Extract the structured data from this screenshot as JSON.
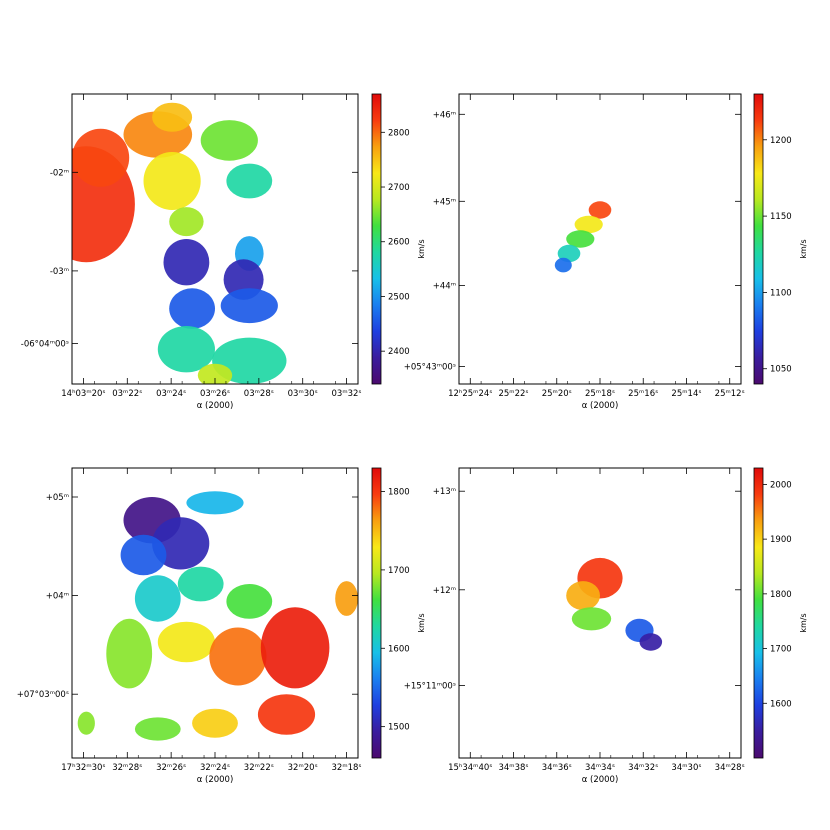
{
  "figure": {
    "colormap": [
      "#4b0a6e",
      "#3a1d9e",
      "#1e3fe0",
      "#1a7ff0",
      "#18c0e8",
      "#20d8a0",
      "#40e040",
      "#b8e820",
      "#f8e818",
      "#f8a010",
      "#f83c10",
      "#e00a0a"
    ]
  },
  "chart_data": [
    {
      "type": "heatmap",
      "panel": "top-left",
      "title": "",
      "xlabel": "α (2000)",
      "ylabel": "",
      "colorbar_label": "km/s",
      "colorbar_range": [
        2340,
        2870
      ],
      "colorbar_ticks": [
        "2400",
        "2500",
        "2600",
        "2700",
        "2800"
      ],
      "x_tick_labels": [
        "14ʰ03ᵐ20ˢ",
        "03ᵐ22ˢ",
        "03ᵐ24ˢ",
        "03ᵐ26ˢ",
        "03ᵐ28ˢ",
        "03ᵐ30ˢ",
        "03ᵐ32ˢ"
      ],
      "y_tick_labels": [
        "-02ᵐ",
        "-03ᵐ",
        "-06°04ᵐ00ˢ"
      ],
      "blobs": [
        {
          "cx": 0.05,
          "cy": 0.62,
          "rx": 0.17,
          "ry": 0.2,
          "v": 0.93
        },
        {
          "cx": 0.1,
          "cy": 0.78,
          "rx": 0.1,
          "ry": 0.1,
          "v": 0.9
        },
        {
          "cx": 0.3,
          "cy": 0.86,
          "rx": 0.12,
          "ry": 0.08,
          "v": 0.84
        },
        {
          "cx": 0.35,
          "cy": 0.7,
          "rx": 0.1,
          "ry": 0.1,
          "v": 0.72
        },
        {
          "cx": 0.35,
          "cy": 0.92,
          "rx": 0.07,
          "ry": 0.05,
          "v": 0.78
        },
        {
          "cx": 0.55,
          "cy": 0.84,
          "rx": 0.1,
          "ry": 0.07,
          "v": 0.58
        },
        {
          "cx": 0.62,
          "cy": 0.7,
          "rx": 0.08,
          "ry": 0.06,
          "v": 0.45
        },
        {
          "cx": 0.4,
          "cy": 0.56,
          "rx": 0.06,
          "ry": 0.05,
          "v": 0.62
        },
        {
          "cx": 0.62,
          "cy": 0.45,
          "rx": 0.05,
          "ry": 0.06,
          "v": 0.32
        },
        {
          "cx": 0.4,
          "cy": 0.42,
          "rx": 0.08,
          "ry": 0.08,
          "v": 0.12
        },
        {
          "cx": 0.6,
          "cy": 0.36,
          "rx": 0.07,
          "ry": 0.07,
          "v": 0.12
        },
        {
          "cx": 0.42,
          "cy": 0.26,
          "rx": 0.08,
          "ry": 0.07,
          "v": 0.22
        },
        {
          "cx": 0.62,
          "cy": 0.27,
          "rx": 0.1,
          "ry": 0.06,
          "v": 0.22
        },
        {
          "cx": 0.4,
          "cy": 0.12,
          "rx": 0.1,
          "ry": 0.08,
          "v": 0.45
        },
        {
          "cx": 0.62,
          "cy": 0.08,
          "rx": 0.13,
          "ry": 0.08,
          "v": 0.45
        },
        {
          "cx": 0.5,
          "cy": 0.03,
          "rx": 0.06,
          "ry": 0.04,
          "v": 0.65
        }
      ]
    },
    {
      "type": "heatmap",
      "panel": "top-right",
      "title": "",
      "xlabel": "α (2000)",
      "ylabel": "",
      "colorbar_label": "km/s",
      "colorbar_range": [
        1040,
        1230
      ],
      "colorbar_ticks": [
        "1050",
        "1100",
        "1150",
        "1200"
      ],
      "x_tick_labels": [
        "12ʰ25ᵐ24ˢ",
        "25ᵐ22ˢ",
        "25ᵐ20ˢ",
        "25ᵐ18ˢ",
        "25ᵐ16ˢ",
        "25ᵐ14ˢ",
        "25ᵐ12ˢ"
      ],
      "y_tick_labels": [
        "+46ᵐ",
        "+45ᵐ",
        "+44ᵐ",
        "+05°43ᵐ00ˢ"
      ],
      "blobs": [
        {
          "cx": 0.5,
          "cy": 0.6,
          "rx": 0.04,
          "ry": 0.03,
          "v": 0.9
        },
        {
          "cx": 0.46,
          "cy": 0.55,
          "rx": 0.05,
          "ry": 0.03,
          "v": 0.72
        },
        {
          "cx": 0.43,
          "cy": 0.5,
          "rx": 0.05,
          "ry": 0.03,
          "v": 0.55
        },
        {
          "cx": 0.39,
          "cy": 0.45,
          "rx": 0.04,
          "ry": 0.03,
          "v": 0.42
        },
        {
          "cx": 0.37,
          "cy": 0.41,
          "rx": 0.03,
          "ry": 0.025,
          "v": 0.25
        }
      ]
    },
    {
      "type": "heatmap",
      "panel": "bottom-left",
      "title": "",
      "xlabel": "α (2000)",
      "ylabel": "",
      "colorbar_label": "km/s",
      "colorbar_range": [
        1460,
        1830
      ],
      "colorbar_ticks": [
        "1500",
        "1600",
        "1700",
        "1800"
      ],
      "x_tick_labels": [
        "17ʰ32ᵐ30ˢ",
        "32ᵐ28ˢ",
        "32ᵐ26ˢ",
        "32ᵐ24ˢ",
        "32ᵐ22ˢ",
        "32ᵐ20ˢ",
        "32ᵐ18ˢ"
      ],
      "y_tick_labels": [
        "+05ᵐ",
        "+04ᵐ",
        "+07°03ᵐ00ˢ"
      ],
      "blobs": [
        {
          "cx": 0.28,
          "cy": 0.82,
          "rx": 0.1,
          "ry": 0.08,
          "v": 0.05
        },
        {
          "cx": 0.38,
          "cy": 0.74,
          "rx": 0.1,
          "ry": 0.09,
          "v": 0.12
        },
        {
          "cx": 0.25,
          "cy": 0.7,
          "rx": 0.08,
          "ry": 0.07,
          "v": 0.22
        },
        {
          "cx": 0.5,
          "cy": 0.88,
          "rx": 0.1,
          "ry": 0.04,
          "v": 0.35
        },
        {
          "cx": 0.3,
          "cy": 0.55,
          "rx": 0.08,
          "ry": 0.08,
          "v": 0.4
        },
        {
          "cx": 0.45,
          "cy": 0.6,
          "rx": 0.08,
          "ry": 0.06,
          "v": 0.45
        },
        {
          "cx": 0.62,
          "cy": 0.54,
          "rx": 0.08,
          "ry": 0.06,
          "v": 0.55
        },
        {
          "cx": 0.2,
          "cy": 0.36,
          "rx": 0.08,
          "ry": 0.12,
          "v": 0.6
        },
        {
          "cx": 0.4,
          "cy": 0.4,
          "rx": 0.1,
          "ry": 0.07,
          "v": 0.72
        },
        {
          "cx": 0.58,
          "cy": 0.35,
          "rx": 0.1,
          "ry": 0.1,
          "v": 0.86
        },
        {
          "cx": 0.78,
          "cy": 0.38,
          "rx": 0.12,
          "ry": 0.14,
          "v": 0.96
        },
        {
          "cx": 0.75,
          "cy": 0.15,
          "rx": 0.1,
          "ry": 0.07,
          "v": 0.92
        },
        {
          "cx": 0.5,
          "cy": 0.12,
          "rx": 0.08,
          "ry": 0.05,
          "v": 0.76
        },
        {
          "cx": 0.3,
          "cy": 0.1,
          "rx": 0.08,
          "ry": 0.04,
          "v": 0.58
        },
        {
          "cx": 0.96,
          "cy": 0.55,
          "rx": 0.04,
          "ry": 0.06,
          "v": 0.82
        },
        {
          "cx": 0.05,
          "cy": 0.12,
          "rx": 0.03,
          "ry": 0.04,
          "v": 0.6
        }
      ]
    },
    {
      "type": "heatmap",
      "panel": "bottom-right",
      "title": "",
      "xlabel": "α (2000)",
      "ylabel": "",
      "colorbar_label": "km/s",
      "colorbar_range": [
        1500,
        2030
      ],
      "colorbar_ticks": [
        "1600",
        "1700",
        "1800",
        "1900",
        "2000"
      ],
      "x_tick_labels": [
        "15ʰ34ᵐ40ˢ",
        "34ᵐ38ˢ",
        "34ᵐ36ˢ",
        "34ᵐ34ˢ",
        "34ᵐ32ˢ",
        "34ᵐ30ˢ",
        "34ᵐ28ˢ"
      ],
      "y_tick_labels": [
        "+13ᵐ",
        "+12ᵐ",
        "+15°11ᵐ00ˢ"
      ],
      "blobs": [
        {
          "cx": 0.5,
          "cy": 0.62,
          "rx": 0.08,
          "ry": 0.07,
          "v": 0.92
        },
        {
          "cx": 0.44,
          "cy": 0.56,
          "rx": 0.06,
          "ry": 0.05,
          "v": 0.8
        },
        {
          "cx": 0.47,
          "cy": 0.48,
          "rx": 0.07,
          "ry": 0.04,
          "v": 0.58
        },
        {
          "cx": 0.64,
          "cy": 0.44,
          "rx": 0.05,
          "ry": 0.04,
          "v": 0.22
        },
        {
          "cx": 0.68,
          "cy": 0.4,
          "rx": 0.04,
          "ry": 0.03,
          "v": 0.1
        }
      ]
    }
  ]
}
